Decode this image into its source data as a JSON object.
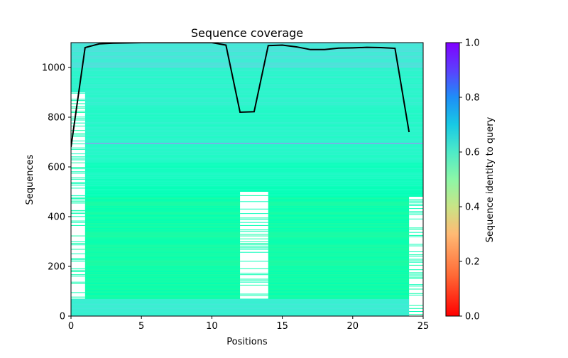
{
  "chart_data": {
    "type": "heatmap",
    "title": "Sequence coverage",
    "xlabel": "Positions",
    "ylabel": "Sequences",
    "xlim": [
      0,
      25
    ],
    "ylim": [
      0,
      1100
    ],
    "x_ticks": [
      0,
      5,
      10,
      15,
      20,
      25
    ],
    "y_ticks": [
      0,
      200,
      400,
      600,
      800,
      1000
    ],
    "colorbar": {
      "label": "Sequence identity to query",
      "range": [
        0,
        1
      ],
      "ticks": [
        "0.0",
        "0.2",
        "0.4",
        "0.6",
        "0.8",
        "1.0"
      ],
      "colormap": "rainbow_r"
    },
    "identity_bands": [
      {
        "y0": 0,
        "y1": 70,
        "identity": 0.62
      },
      {
        "y0": 70,
        "y1": 200,
        "identity": 0.47
      },
      {
        "y0": 200,
        "y1": 340,
        "identity": 0.46
      },
      {
        "y0": 340,
        "y1": 480,
        "identity": 0.47
      },
      {
        "y0": 480,
        "y1": 520,
        "identity": 0.53
      },
      {
        "y0": 520,
        "y1": 620,
        "identity": 0.55
      },
      {
        "y0": 620,
        "y1": 700,
        "identity": 0.57
      },
      {
        "y0": 700,
        "y1": 850,
        "identity": 0.58
      },
      {
        "y0": 850,
        "y1": 1000,
        "identity": 0.6
      },
      {
        "y0": 1000,
        "y1": 1100,
        "identity": 0.64
      }
    ],
    "gaps": [
      {
        "x0": 0,
        "x1": 1,
        "y0": 70,
        "y1": 680
      },
      {
        "x0": 0,
        "x1": 1,
        "y0": 680,
        "y1": 900
      },
      {
        "x0": 12,
        "x1": 14,
        "y0": 70,
        "y1": 500
      },
      {
        "x0": 24,
        "x1": 25,
        "y0": 0,
        "y1": 480
      }
    ],
    "coverage_line": {
      "x": [
        0,
        1,
        2,
        3,
        4,
        5,
        6,
        7,
        8,
        9,
        10,
        11,
        12,
        13,
        14,
        15,
        16,
        17,
        18,
        19,
        20,
        21,
        22,
        23,
        24
      ],
      "y": [
        680,
        1080,
        1095,
        1098,
        1099,
        1100,
        1100,
        1100,
        1100,
        1100,
        1100,
        1090,
        820,
        822,
        1088,
        1090,
        1083,
        1072,
        1072,
        1078,
        1079,
        1081,
        1080,
        1077,
        740
      ],
      "color": "#000000"
    }
  }
}
